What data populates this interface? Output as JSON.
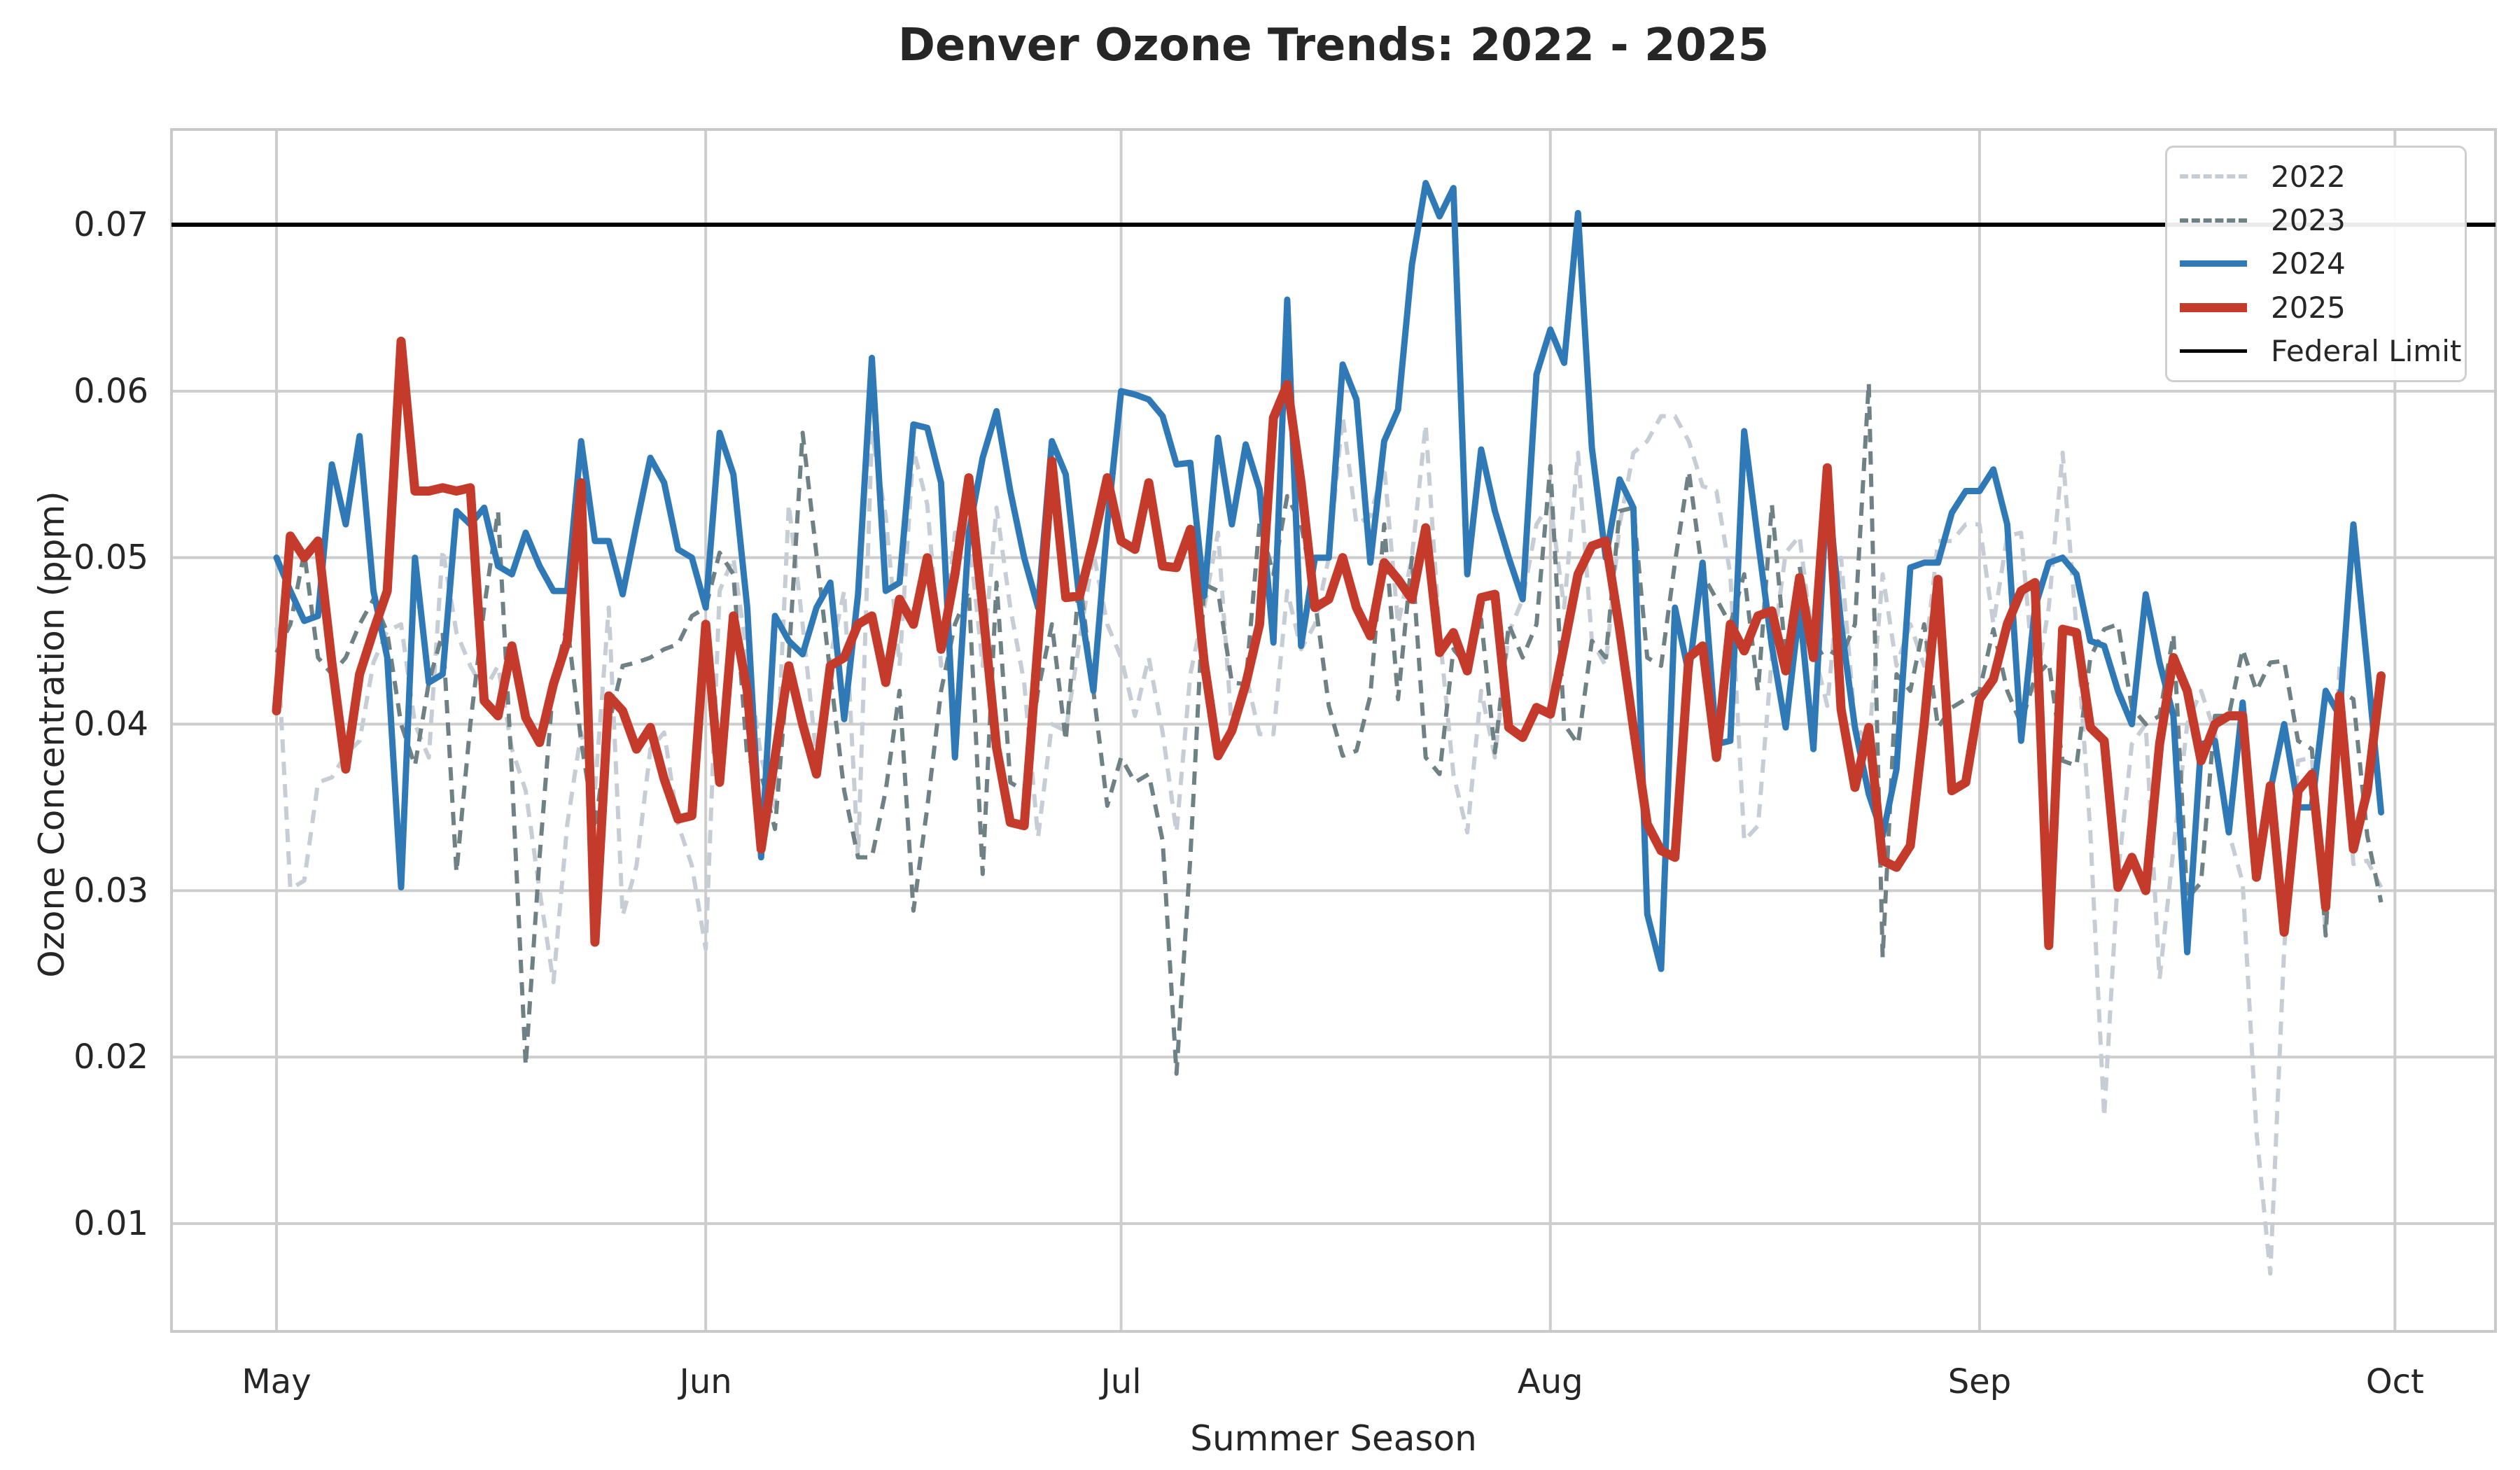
{
  "title": "Denver Ozone Trends: 2022 - 2025",
  "x_axis": {
    "label": "Summer Season",
    "tick_labels": [
      "May",
      "Jun",
      "Jul",
      "Aug",
      "Sep",
      "Oct"
    ]
  },
  "y_axis": {
    "label": "Ozone Concentration (ppm)",
    "tick_labels": [
      "0.01",
      "0.02",
      "0.03",
      "0.04",
      "0.05",
      "0.06",
      "0.07"
    ]
  },
  "legend": {
    "items": [
      {
        "label": "2022",
        "color": "#c6cdd5",
        "dash": true,
        "width": 6
      },
      {
        "label": "2023",
        "color": "#6e8184",
        "dash": true,
        "width": 6
      },
      {
        "label": "2024",
        "color": "#3079b7",
        "dash": false,
        "width": 9
      },
      {
        "label": "2025",
        "color": "#c53b2b",
        "dash": false,
        "width": 13
      },
      {
        "label": "Federal Limit",
        "color": "#000000",
        "dash": false,
        "width": 5
      }
    ]
  },
  "chart_data": {
    "type": "line",
    "title": "Denver Ozone Trends: 2022 - 2025",
    "xlabel": "Summer Season",
    "ylabel": "Ozone Concentration (ppm)",
    "x_unit": "day of summer season, daily values, day 1 = May 1, day 153 = Sep 30",
    "n_points": 153,
    "month_ticks": {
      "labels": [
        "May",
        "Jun",
        "Jul",
        "Aug",
        "Sep",
        "Oct"
      ],
      "days": [
        1,
        32,
        62,
        93,
        124,
        154
      ]
    },
    "yticks": [
      0.01,
      0.02,
      0.03,
      0.04,
      0.05,
      0.06,
      0.07
    ],
    "ylim": [
      0.0035,
      0.0757
    ],
    "grid": true,
    "legend_position": "upper right",
    "reference_line": {
      "name": "Federal Limit",
      "value": 0.07,
      "color": "#000000",
      "width": 6
    },
    "series": [
      {
        "name": "2022",
        "color": "#c6cdd5",
        "dash": true,
        "width": 6,
        "values": [
          0.0458,
          0.0301,
          0.0306,
          0.0365,
          0.0368,
          0.0382,
          0.039,
          0.0437,
          0.0456,
          0.046,
          0.04,
          0.038,
          0.0505,
          0.0455,
          0.0435,
          0.042,
          0.0435,
          0.0385,
          0.036,
          0.03,
          0.0245,
          0.034,
          0.0395,
          0.036,
          0.047,
          0.0285,
          0.0315,
          0.0385,
          0.0395,
          0.034,
          0.0315,
          0.0265,
          0.048,
          0.05,
          0.044,
          0.038,
          0.035,
          0.0532,
          0.046,
          0.038,
          0.044,
          0.048,
          0.032,
          0.0575,
          0.0525,
          0.0435,
          0.0565,
          0.0532,
          0.0435,
          0.0515,
          0.0515,
          0.0435,
          0.053,
          0.047,
          0.0425,
          0.0332,
          0.04,
          0.0396,
          0.045,
          0.0503,
          0.046,
          0.044,
          0.0405,
          0.044,
          0.0395,
          0.0335,
          0.043,
          0.047,
          0.0515,
          0.0397,
          0.043,
          0.0394,
          0.0394,
          0.048,
          0.0445,
          0.046,
          0.05,
          0.0585,
          0.052,
          0.0525,
          0.0555,
          0.046,
          0.05,
          0.058,
          0.0455,
          0.037,
          0.0335,
          0.042,
          0.038,
          0.0455,
          0.0475,
          0.052,
          0.0533,
          0.047,
          0.0563,
          0.045,
          0.0435,
          0.052,
          0.0563,
          0.057,
          0.0585,
          0.0585,
          0.057,
          0.0543,
          0.054,
          0.049,
          0.033,
          0.0339,
          0.044,
          0.0503,
          0.0513,
          0.0445,
          0.0411,
          0.05,
          0.04,
          0.0388,
          0.049,
          0.0435,
          0.046,
          0.0435,
          0.051,
          0.051,
          0.052,
          0.052,
          0.046,
          0.0513,
          0.0515,
          0.042,
          0.047,
          0.0563,
          0.0457,
          0.0335,
          0.0164,
          0.031,
          0.0388,
          0.04,
          0.0247,
          0.0325,
          0.04,
          0.042,
          0.0395,
          0.0335,
          0.0305,
          0.0155,
          0.007,
          0.0265,
          0.0378,
          0.038,
          0.0275,
          0.0435,
          0.0316,
          0.0318,
          0.0302
        ]
      },
      {
        "name": "2023",
        "color": "#6e8184",
        "dash": true,
        "width": 6,
        "values": [
          0.0443,
          0.046,
          0.0503,
          0.044,
          0.043,
          0.044,
          0.046,
          0.0475,
          0.0455,
          0.04,
          0.0375,
          0.0425,
          0.0455,
          0.0311,
          0.04,
          0.047,
          0.0528,
          0.037,
          0.0195,
          0.032,
          0.0425,
          0.046,
          0.039,
          0.0337,
          0.04,
          0.0435,
          0.0437,
          0.044,
          0.0445,
          0.0448,
          0.0465,
          0.047,
          0.0503,
          0.049,
          0.038,
          0.037,
          0.0337,
          0.044,
          0.0575,
          0.0502,
          0.043,
          0.036,
          0.032,
          0.032,
          0.036,
          0.042,
          0.0288,
          0.035,
          0.042,
          0.046,
          0.048,
          0.031,
          0.0485,
          0.0365,
          0.036,
          0.042,
          0.046,
          0.039,
          0.0488,
          0.042,
          0.0351,
          0.038,
          0.0365,
          0.037,
          0.033,
          0.019,
          0.032,
          0.0484,
          0.048,
          0.0425,
          0.0424,
          0.0521,
          0.049,
          0.0537,
          0.052,
          0.0475,
          0.0411,
          0.0381,
          0.0384,
          0.0417,
          0.052,
          0.0415,
          0.05,
          0.038,
          0.037,
          0.0445,
          0.0435,
          0.0463,
          0.0383,
          0.046,
          0.044,
          0.046,
          0.0555,
          0.04,
          0.0388,
          0.045,
          0.044,
          0.0528,
          0.053,
          0.044,
          0.0435,
          0.0497,
          0.0552,
          0.049,
          0.0475,
          0.046,
          0.049,
          0.042,
          0.0532,
          0.044,
          0.0495,
          0.044,
          0.0445,
          0.044,
          0.046,
          0.0605,
          0.026,
          0.043,
          0.042,
          0.046,
          0.0398,
          0.041,
          0.0415,
          0.042,
          0.0457,
          0.042,
          0.04,
          0.0428,
          0.0437,
          0.0378,
          0.0375,
          0.044,
          0.0457,
          0.046,
          0.041,
          0.04,
          0.0405,
          0.0454,
          0.0295,
          0.0305,
          0.0405,
          0.0405,
          0.0445,
          0.042,
          0.0437,
          0.0438,
          0.039,
          0.0385,
          0.0273,
          0.042,
          0.0415,
          0.0333,
          0.0293
        ]
      },
      {
        "name": "2024",
        "color": "#3079b7",
        "dash": false,
        "width": 9,
        "values": [
          0.05,
          0.048,
          0.0462,
          0.0465,
          0.0556,
          0.052,
          0.0573,
          0.048,
          0.044,
          0.0302,
          0.05,
          0.0425,
          0.043,
          0.0528,
          0.052,
          0.053,
          0.0495,
          0.049,
          0.0515,
          0.0495,
          0.048,
          0.048,
          0.057,
          0.051,
          0.051,
          0.0478,
          0.052,
          0.056,
          0.0545,
          0.0505,
          0.05,
          0.047,
          0.0575,
          0.055,
          0.047,
          0.032,
          0.0465,
          0.045,
          0.0442,
          0.047,
          0.0485,
          0.0403,
          0.0478,
          0.062,
          0.048,
          0.0485,
          0.058,
          0.0578,
          0.0545,
          0.038,
          0.0515,
          0.056,
          0.0588,
          0.054,
          0.05,
          0.047,
          0.057,
          0.055,
          0.0474,
          0.042,
          0.052,
          0.06,
          0.0598,
          0.0595,
          0.0585,
          0.0556,
          0.0557,
          0.0477,
          0.0572,
          0.052,
          0.0568,
          0.0541,
          0.0449,
          0.0655,
          0.0447,
          0.05,
          0.05,
          0.0616,
          0.0595,
          0.0497,
          0.057,
          0.0589,
          0.0676,
          0.0725,
          0.0705,
          0.0722,
          0.049,
          0.0565,
          0.0528,
          0.05,
          0.0475,
          0.061,
          0.0637,
          0.0617,
          0.0707,
          0.0566,
          0.05,
          0.0547,
          0.053,
          0.0286,
          0.0253,
          0.047,
          0.043,
          0.0497,
          0.0388,
          0.039,
          0.0576,
          0.051,
          0.0447,
          0.0398,
          0.047,
          0.0385,
          0.0545,
          0.046,
          0.0398,
          0.0358,
          0.0333,
          0.0373,
          0.0494,
          0.0497,
          0.0497,
          0.0527,
          0.054,
          0.054,
          0.0553,
          0.052,
          0.039,
          0.047,
          0.0497,
          0.05,
          0.049,
          0.045,
          0.0447,
          0.042,
          0.04,
          0.0478,
          0.0437,
          0.0405,
          0.0263,
          0.0388,
          0.039,
          0.0335,
          0.0413,
          0.031,
          0.036,
          0.04,
          0.035,
          0.035,
          0.042,
          0.0405,
          0.052,
          0.0435,
          0.0347
        ]
      },
      {
        "name": "2025",
        "color": "#c53b2b",
        "dash": false,
        "width": 13,
        "values": [
          0.0408,
          0.0513,
          0.05,
          0.051,
          0.0437,
          0.0373,
          0.043,
          0.0456,
          0.048,
          0.063,
          0.054,
          0.054,
          0.0542,
          0.054,
          0.0542,
          0.0414,
          0.0405,
          0.0447,
          0.0404,
          0.0389,
          0.0424,
          0.045,
          0.0545,
          0.0269,
          0.0417,
          0.0408,
          0.0385,
          0.0398,
          0.0367,
          0.0343,
          0.0345,
          0.046,
          0.0365,
          0.0465,
          0.042,
          0.0325,
          0.038,
          0.0435,
          0.04,
          0.037,
          0.0435,
          0.044,
          0.046,
          0.0465,
          0.0425,
          0.0475,
          0.046,
          0.05,
          0.0445,
          0.049,
          0.0548,
          0.047,
          0.0386,
          0.0341,
          0.0339,
          0.0448,
          0.0558,
          0.0476,
          0.0477,
          0.051,
          0.0548,
          0.051,
          0.0505,
          0.0545,
          0.0495,
          0.0494,
          0.0517,
          0.0437,
          0.0381,
          0.0396,
          0.0424,
          0.046,
          0.0584,
          0.0604,
          0.0545,
          0.047,
          0.0475,
          0.05,
          0.047,
          0.0453,
          0.0497,
          0.0487,
          0.0475,
          0.0518,
          0.0443,
          0.0455,
          0.0432,
          0.0476,
          0.0478,
          0.0398,
          0.0392,
          0.041,
          0.0406,
          0.0447,
          0.049,
          0.0507,
          0.051,
          0.0457,
          0.0398,
          0.034,
          0.0324,
          0.032,
          0.044,
          0.0447,
          0.038,
          0.046,
          0.0444,
          0.0465,
          0.0468,
          0.0432,
          0.0488,
          0.044,
          0.0554,
          0.0409,
          0.0362,
          0.0398,
          0.0318,
          0.0314,
          0.0327,
          0.04,
          0.0487,
          0.036,
          0.0365,
          0.0415,
          0.0427,
          0.046,
          0.048,
          0.0485,
          0.0267,
          0.0457,
          0.0455,
          0.0398,
          0.039,
          0.0302,
          0.032,
          0.03,
          0.0388,
          0.044,
          0.042,
          0.0378,
          0.04,
          0.0405,
          0.0405,
          0.0308,
          0.0363,
          0.0275,
          0.036,
          0.037,
          0.029,
          0.0417,
          0.0325,
          0.036,
          0.0429
        ]
      }
    ]
  }
}
